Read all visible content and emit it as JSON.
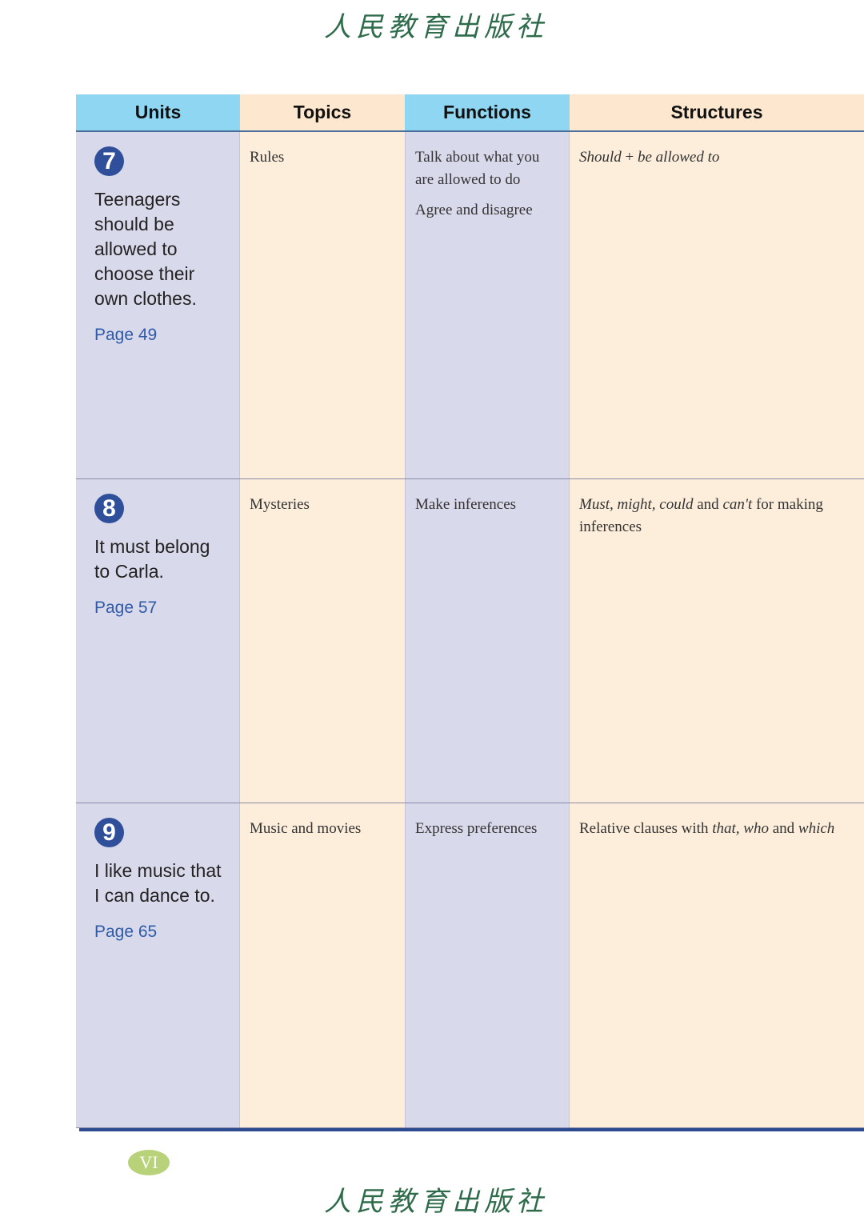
{
  "publisher_logo": "人民教育出版社",
  "header": [
    "Units",
    "Topics",
    "Functions",
    "Structures"
  ],
  "rows": [
    {
      "number": "7",
      "title": "Teenagers should be allowed to choose their own clothes.",
      "page": "Page 49",
      "topic": "Rules",
      "functions": [
        "Talk about what you are allowed to do",
        "Agree and disagree"
      ],
      "structure_html": "<i>Should</i> + <i>be allowed to</i>"
    },
    {
      "number": "8",
      "title": "It must belong to Carla.",
      "page": "Page 57",
      "topic": "Mysteries",
      "functions": [
        "Make inferences"
      ],
      "structure_html": "<i>Must, might, could</i> and <i>can't</i> for making inferences"
    },
    {
      "number": "9",
      "title": "I like music that I can dance to.",
      "page": "Page 65",
      "topic": "Music and movies",
      "functions": [
        "Express preferences"
      ],
      "structure_html": "Relative clauses with <i>that, who</i> and <i>which</i>"
    }
  ],
  "page_number": "VI",
  "colors": {
    "header_blue": "#8fd6f3",
    "header_peach": "#fde8cf",
    "badge": "#2f4f9a",
    "page_link": "#2f5aa8"
  }
}
